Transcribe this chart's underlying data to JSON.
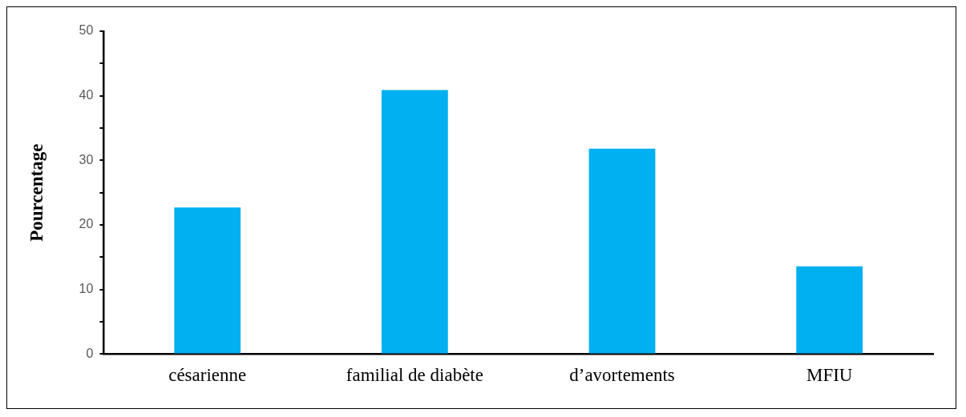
{
  "chart_data": {
    "type": "bar",
    "ylabel": "Pourcentage",
    "categories": [
      "césarienne",
      "familial de diabète",
      "d’avortements",
      "MFIU"
    ],
    "values": [
      22.7,
      40.9,
      31.8,
      13.6
    ],
    "color": "#00b0f0",
    "ylim": [
      0,
      50
    ],
    "yticks": [
      0,
      {
        "value": 5,
        "label": null
      },
      10,
      {
        "value": 15,
        "label": null
      },
      20,
      {
        "value": 25,
        "label": null
      },
      30,
      {
        "value": 35,
        "label": null
      },
      40,
      {
        "value": 45,
        "label": null
      },
      50
    ],
    "grid": false,
    "legend": false
  }
}
